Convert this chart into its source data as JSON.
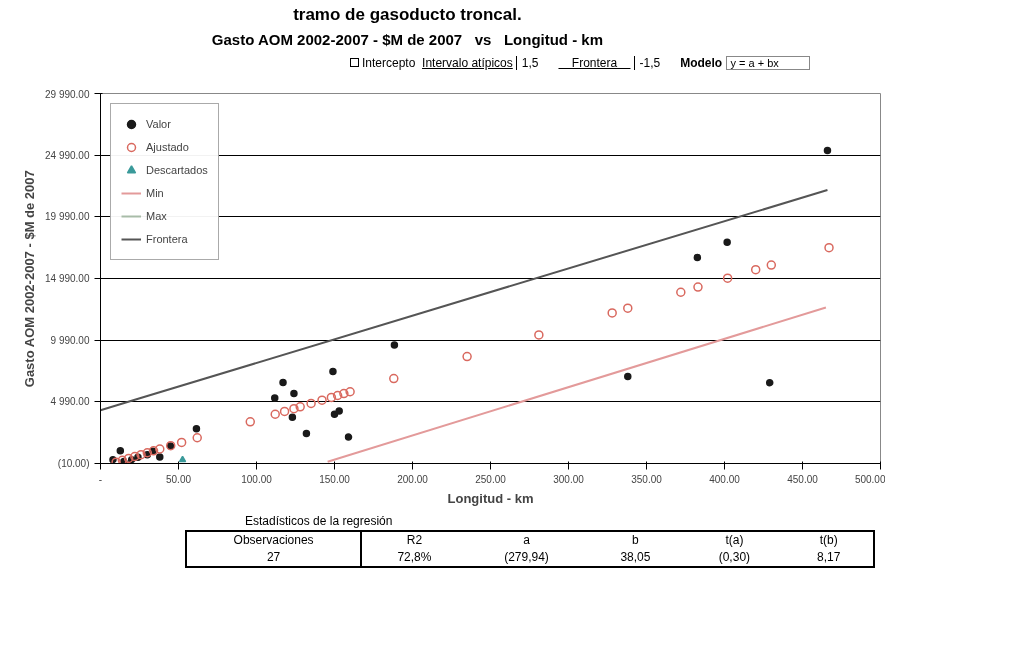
{
  "chart_data": {
    "type": "scatter",
    "title": "tramo de gasoducto troncal.",
    "subtitle": "Gasto AOM 2002-2007 - $M de 2007   vs   Longitud - km",
    "xlabel": "Longitud - km",
    "ylabel": "Gasto AOM 2002-2007 - $M de 2007",
    "xlim": [
      0,
      500
    ],
    "ylim": [
      -10,
      29990
    ],
    "xticks": [
      {
        "value": 0,
        "label": "-"
      },
      {
        "value": 50,
        "label": "50.00"
      },
      {
        "value": 100,
        "label": "100.00"
      },
      {
        "value": 150,
        "label": "150.00"
      },
      {
        "value": 200,
        "label": "200.00"
      },
      {
        "value": 250,
        "label": "250.00"
      },
      {
        "value": 300,
        "label": "300.00"
      },
      {
        "value": 350,
        "label": "350.00"
      },
      {
        "value": 400,
        "label": "400.00"
      },
      {
        "value": 450,
        "label": "450.00"
      },
      {
        "value": 500,
        "label": "500.00"
      }
    ],
    "yticks": [
      {
        "value": -10,
        "label": "(10.00)"
      },
      {
        "value": 4990,
        "label": "4 990.00"
      },
      {
        "value": 9990,
        "label": "9 990.00"
      },
      {
        "value": 14990,
        "label": "14 990.00"
      },
      {
        "value": 19990,
        "label": "19 990.00"
      },
      {
        "value": 24990,
        "label": "24 990.00"
      },
      {
        "value": 29990,
        "label": "29 990.00"
      }
    ],
    "grid": "y",
    "legend": "top left",
    "series": [
      {
        "name": "Valor",
        "marker": "circle",
        "color": "#1a1a1a",
        "x": [
          8,
          12.7,
          15,
          20,
          24,
          30,
          33.5,
          38,
          45,
          61.5,
          111.7,
          117,
          124,
          123,
          132,
          149,
          150,
          153,
          159,
          188.4,
          338,
          382.6,
          401.7,
          429,
          466
        ],
        "values": [
          300,
          1030,
          150,
          300,
          500,
          700,
          980,
          510,
          1400,
          2815,
          5310,
          6560,
          5660,
          3750,
          2420,
          7440,
          3990,
          4240,
          2130,
          9600,
          7050,
          16700,
          17930,
          6540,
          25360
        ]
      },
      {
        "name": "Ajustado",
        "marker": "circle_hollow",
        "color": "#d9695f",
        "x": [
          10,
          14,
          18,
          22,
          26,
          30,
          34,
          38,
          45,
          52,
          62,
          96,
          112,
          118,
          124,
          128,
          135,
          142,
          148,
          152,
          156,
          160,
          188,
          235,
          281,
          328,
          338,
          372,
          383,
          402,
          420,
          430,
          467
        ],
        "values": [
          101,
          253,
          405,
          557,
          709,
          862,
          1014,
          1166,
          1432,
          1699,
          2079,
          3373,
          3982,
          4210,
          4438,
          4590,
          4857,
          5123,
          5351,
          5504,
          5656,
          5808,
          6873,
          8662,
          10412,
          12200,
          12581,
          13875,
          14293,
          15016,
          15701,
          16082,
          17489
        ]
      },
      {
        "name": "Descartados",
        "marker": "triangle",
        "color": "#3a9a9a",
        "x": [
          52.6
        ],
        "values": [
          290
        ]
      },
      {
        "name": "Min",
        "type": "line",
        "color": "#e39a9a",
        "x": [
          145.6,
          465
        ],
        "values": [
          135,
          12640
        ]
      },
      {
        "name": "Max",
        "type": "line",
        "color": "#a8bca8"
      },
      {
        "name": "Frontera",
        "type": "line",
        "color": "#555555",
        "x": [
          0,
          21.5,
          466
        ],
        "values": [
          4310,
          5135,
          22165
        ]
      }
    ],
    "annotations": [
      "Intercepto",
      "Intervalo atípicos",
      "1,5",
      "Frontera",
      "-1,5",
      "Modelo",
      "y = a + bx",
      "Estadísticos de la regresión",
      "Observaciones",
      "27",
      "R2",
      "72,8%",
      "a",
      "(279,94)",
      "b",
      "38,05",
      "t(a)",
      "(0,30)",
      "t(b)",
      "8,17"
    ]
  }
}
